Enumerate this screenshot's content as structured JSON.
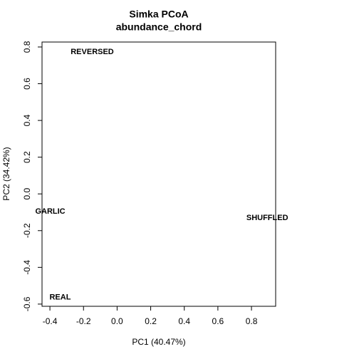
{
  "chart_data": {
    "type": "scatter",
    "title": "Simka PCoA",
    "subtitle": "abundance_chord",
    "xlabel": "PC1 (40.47%)",
    "ylabel": "PC2 (34.42%)",
    "categories": [
      "REVERSED",
      "GARLIC",
      "SHUFFLED",
      "REAL"
    ],
    "x": [
      -0.148,
      -0.398,
      0.894,
      -0.339
    ],
    "values": [
      0.773,
      -0.097,
      -0.132,
      -0.563
    ],
    "color": "#000000",
    "xlim": [
      -0.447,
      0.944
    ],
    "ylim": [
      -0.612,
      0.827
    ],
    "xticks": [
      -0.4,
      -0.2,
      {
        "value": 0,
        "label": "0.0"
      },
      0.2,
      0.4,
      0.6,
      0.8
    ],
    "yticks": [
      -0.6,
      -0.4,
      -0.2,
      {
        "value": 0,
        "label": "0.0"
      },
      0.2,
      0.4,
      0.6,
      0.8
    ]
  }
}
